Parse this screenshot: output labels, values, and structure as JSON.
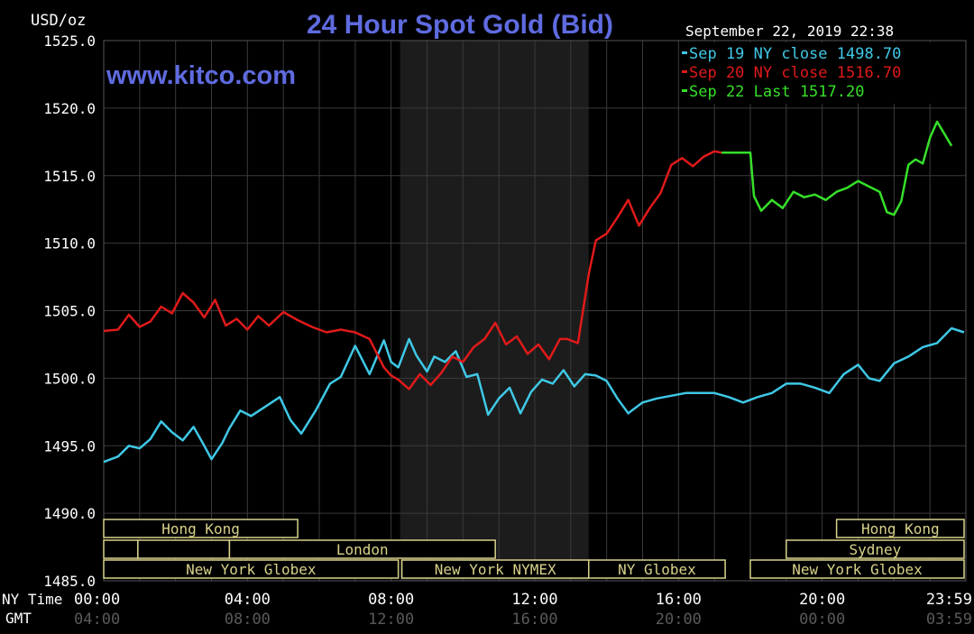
{
  "header": {
    "unit": "USD/oz",
    "title": "24 Hour Spot Gold (Bid)",
    "watermark": "www.kitco.com",
    "timestamp": "September 22, 2019 22:38"
  },
  "legend": [
    {
      "label": "Sep 19 NY close 1498.70",
      "color": "#3fc8e6"
    },
    {
      "label": "Sep 20 NY close 1516.70",
      "color": "#e01a1a"
    },
    {
      "label": "Sep 22 Last 1517.20",
      "color": "#36e02a"
    }
  ],
  "axis": {
    "row_label_ny": "NY Time",
    "row_label_gmt": "GMT",
    "ny_ticks": [
      "00:00",
      "04:00",
      "08:00",
      "12:00",
      "16:00",
      "20:00",
      "23:59"
    ],
    "gmt_ticks": [
      "04:00",
      "08:00",
      "12:00",
      "16:00",
      "20:00",
      "00:00",
      "03:59"
    ]
  },
  "sessions": [
    {
      "label": "Hong Kong",
      "start": 0,
      "end": 5.4,
      "row": 0
    },
    {
      "label": "Hong Kong",
      "start": 20.4,
      "end": 23.95,
      "row": 0
    },
    {
      "label": "",
      "start": 0,
      "end": 0.95,
      "row": 1
    },
    {
      "label": "",
      "start": 0.95,
      "end": 3.5,
      "row": 1
    },
    {
      "label": "London",
      "start": 3.5,
      "end": 10.9,
      "row": 1
    },
    {
      "label": "Sydney",
      "start": 19.0,
      "end": 23.95,
      "row": 1
    },
    {
      "label": "New York Globex",
      "start": 0,
      "end": 8.2,
      "row": 2
    },
    {
      "label": "New York NYMEX",
      "start": 8.3,
      "end": 13.5,
      "row": 2
    },
    {
      "label": "NY Globex",
      "start": 13.5,
      "end": 17.3,
      "row": 2
    },
    {
      "label": "New York Globex",
      "start": 18.0,
      "end": 23.95,
      "row": 2
    }
  ],
  "chart_data": {
    "type": "line",
    "title": "24 Hour Spot Gold (Bid)",
    "xlabel": "NY Time",
    "ylabel": "USD/oz",
    "xlim": [
      0,
      24
    ],
    "ylim": [
      1485,
      1525
    ],
    "y_ticks": [
      1485,
      1490,
      1495,
      1500,
      1505,
      1510,
      1515,
      1520,
      1525
    ],
    "grid": true,
    "shaded_region": [
      8.25,
      13.5
    ],
    "legend_position": "top-right",
    "series": [
      {
        "name": "Sep 19 NY close 1498.70",
        "color": "#3fc8e6",
        "x": [
          0,
          0.4,
          0.7,
          1.0,
          1.3,
          1.6,
          1.9,
          2.2,
          2.5,
          2.8,
          3.0,
          3.3,
          3.5,
          3.8,
          4.1,
          4.5,
          4.9,
          5.2,
          5.5,
          5.9,
          6.3,
          6.6,
          7.0,
          7.4,
          7.8,
          8.0,
          8.2,
          8.5,
          8.7,
          9.0,
          9.2,
          9.5,
          9.8,
          10.1,
          10.4,
          10.7,
          11.0,
          11.3,
          11.6,
          11.9,
          12.2,
          12.5,
          12.8,
          13.1,
          13.4,
          13.7,
          14.0,
          14.3,
          14.6,
          15.0,
          15.4,
          15.8,
          16.2,
          16.6,
          17.0,
          17.4,
          17.8,
          18.2,
          18.6,
          19.0,
          19.4,
          19.8,
          20.2,
          20.6,
          21.0,
          21.3,
          21.6,
          22.0,
          22.4,
          22.8,
          23.2,
          23.6,
          23.95
        ],
        "y": [
          1493.8,
          1494.2,
          1495.0,
          1494.8,
          1495.5,
          1496.8,
          1496.0,
          1495.4,
          1496.4,
          1495.0,
          1494.0,
          1495.2,
          1496.3,
          1497.6,
          1497.2,
          1497.9,
          1498.6,
          1496.9,
          1495.9,
          1497.6,
          1499.6,
          1500.1,
          1502.4,
          1500.3,
          1502.8,
          1501.2,
          1500.8,
          1502.9,
          1501.7,
          1500.5,
          1501.6,
          1501.2,
          1502.0,
          1500.1,
          1500.3,
          1497.3,
          1498.5,
          1499.3,
          1497.4,
          1499.0,
          1499.9,
          1499.6,
          1500.6,
          1499.4,
          1500.3,
          1500.2,
          1499.8,
          1498.5,
          1497.4,
          1498.2,
          1498.5,
          1498.7,
          1498.9,
          1498.9,
          1498.9,
          1498.6,
          1498.2,
          1498.6,
          1498.9,
          1499.6,
          1499.6,
          1499.3,
          1498.9,
          1500.3,
          1501.0,
          1500.0,
          1499.8,
          1501.1,
          1501.6,
          1502.3,
          1502.6,
          1503.7,
          1503.4
        ]
      },
      {
        "name": "Sep 20 NY close 1516.70",
        "color": "#e01a1a",
        "x": [
          0,
          0.4,
          0.7,
          1.0,
          1.3,
          1.6,
          1.9,
          2.2,
          2.5,
          2.8,
          3.1,
          3.4,
          3.7,
          4.0,
          4.3,
          4.6,
          5.0,
          5.4,
          5.8,
          6.2,
          6.6,
          7.0,
          7.4,
          7.8,
          8.0,
          8.2,
          8.5,
          8.8,
          9.1,
          9.4,
          9.7,
          10.0,
          10.3,
          10.6,
          10.9,
          11.2,
          11.5,
          11.8,
          12.1,
          12.4,
          12.7,
          12.9,
          13.2,
          13.5,
          13.7,
          14.0,
          14.3,
          14.6,
          14.9,
          15.2,
          15.5,
          15.8,
          16.1,
          16.4,
          16.7,
          17.0,
          17.2
        ],
        "y": [
          1503.5,
          1503.6,
          1504.7,
          1503.8,
          1504.2,
          1505.3,
          1504.8,
          1506.3,
          1505.6,
          1504.5,
          1505.8,
          1503.9,
          1504.4,
          1503.6,
          1504.6,
          1503.9,
          1504.9,
          1504.3,
          1503.8,
          1503.4,
          1503.6,
          1503.4,
          1502.9,
          1500.8,
          1500.2,
          1499.9,
          1499.2,
          1500.3,
          1499.5,
          1500.4,
          1501.6,
          1501.2,
          1502.3,
          1502.9,
          1504.1,
          1502.5,
          1503.1,
          1501.8,
          1502.5,
          1501.4,
          1502.9,
          1502.9,
          1502.6,
          1507.7,
          1510.2,
          1510.7,
          1511.9,
          1513.2,
          1511.3,
          1512.6,
          1513.7,
          1515.8,
          1516.3,
          1515.7,
          1516.4,
          1516.8,
          1516.7
        ]
      },
      {
        "name": "Sep 22 Last 1517.20",
        "color": "#36e02a",
        "x": [
          17.2,
          18.0,
          18.1,
          18.3,
          18.6,
          18.9,
          19.2,
          19.5,
          19.8,
          20.1,
          20.4,
          20.7,
          21.0,
          21.3,
          21.6,
          21.8,
          22.0,
          22.2,
          22.4,
          22.6,
          22.8,
          23.0,
          23.2,
          23.4,
          23.6
        ],
        "y": [
          1516.7,
          1516.7,
          1513.5,
          1512.4,
          1513.2,
          1512.6,
          1513.8,
          1513.4,
          1513.6,
          1513.2,
          1513.8,
          1514.1,
          1514.6,
          1514.2,
          1513.8,
          1512.3,
          1512.1,
          1513.1,
          1515.8,
          1516.2,
          1515.9,
          1517.8,
          1519.0,
          1518.1,
          1517.2
        ]
      }
    ]
  }
}
